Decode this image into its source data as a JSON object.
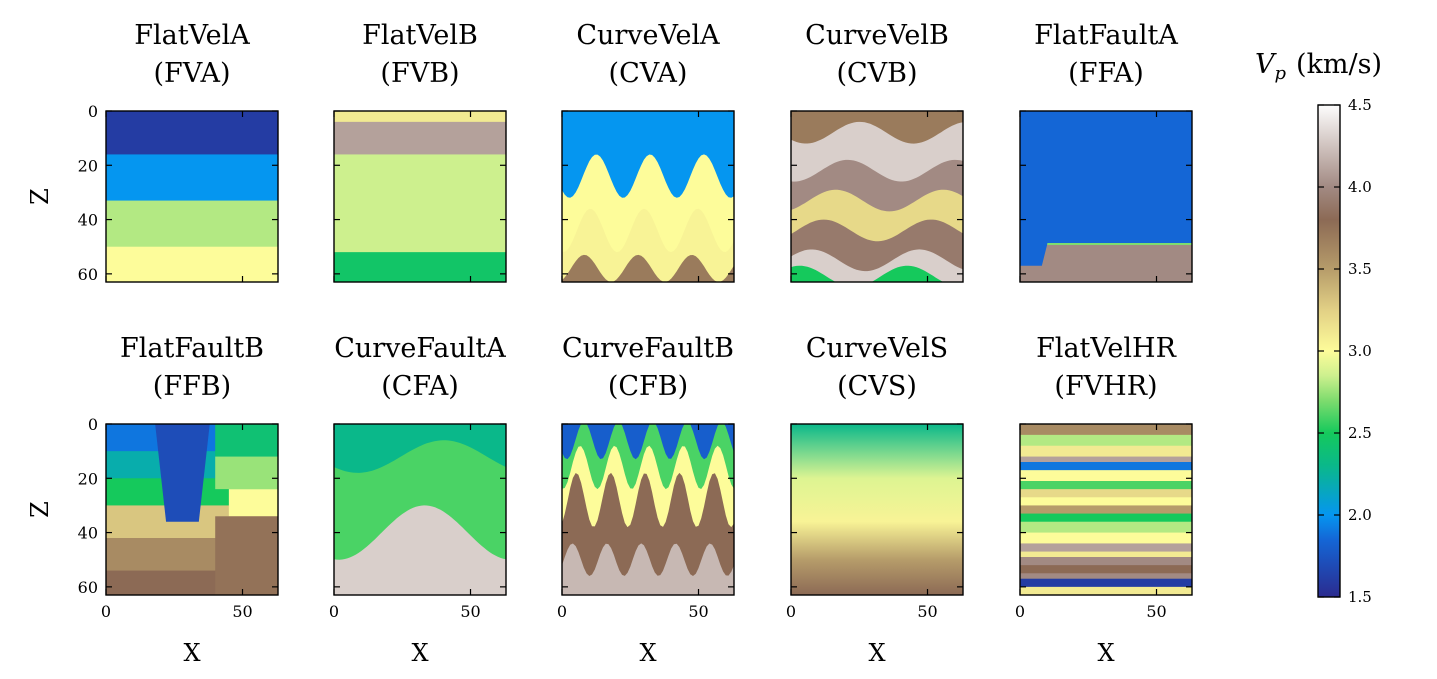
{
  "chart_data": {
    "type": "heatmap",
    "colorbar": {
      "label_symbol": "V",
      "label_subscript": "p",
      "label_unit": "(km/s)",
      "range": [
        1.5,
        4.5
      ],
      "ticks": [
        "1.5",
        "2.0",
        "2.5",
        "3.0",
        "3.5",
        "4.0",
        "4.5"
      ],
      "colormap_stops": [
        {
          "v": 1.5,
          "color": "#2b2b8f"
        },
        {
          "v": 1.85,
          "color": "#1466d6"
        },
        {
          "v": 2.0,
          "color": "#0596f0"
        },
        {
          "v": 2.3,
          "color": "#0ab88a"
        },
        {
          "v": 2.5,
          "color": "#15c95c"
        },
        {
          "v": 2.7,
          "color": "#7fdc6e"
        },
        {
          "v": 2.85,
          "color": "#cdf08e"
        },
        {
          "v": 3.0,
          "color": "#fdfc9a"
        },
        {
          "v": 3.25,
          "color": "#e2d085"
        },
        {
          "v": 3.5,
          "color": "#b69c6a"
        },
        {
          "v": 3.8,
          "color": "#8c6a55"
        },
        {
          "v": 4.0,
          "color": "#a28a83"
        },
        {
          "v": 4.25,
          "color": "#d0c3bf"
        },
        {
          "v": 4.5,
          "color": "#fdfdfd"
        }
      ]
    },
    "shared_axes": {
      "xlabel": "X",
      "ylabel": "Z",
      "xlim": [
        0,
        63
      ],
      "ylim": [
        63,
        0
      ],
      "xticks": [
        "0",
        "50"
      ],
      "yticks": [
        "0",
        "20",
        "40",
        "60"
      ]
    },
    "panels": [
      {
        "id": "fva",
        "title_line1": "FlatVelA",
        "title_line2": "(FVA)",
        "kind": "flat",
        "layers": [
          {
            "top": 0,
            "vp": 1.6
          },
          {
            "top": 16,
            "vp": 2.0
          },
          {
            "top": 33,
            "vp": 2.8
          },
          {
            "top": 50,
            "vp": 3.0
          }
        ]
      },
      {
        "id": "fvb",
        "title_line1": "FlatVelB",
        "title_line2": "(FVB)",
        "kind": "flat",
        "layers": [
          {
            "top": 0,
            "vp": 3.1
          },
          {
            "top": 4,
            "vp": 4.1
          },
          {
            "top": 16,
            "vp": 2.85
          },
          {
            "top": 52,
            "vp": 2.45
          }
        ]
      },
      {
        "id": "cva",
        "title_line1": "CurveVelA",
        "title_line2": "(CVA)",
        "kind": "curve",
        "layers": [
          {
            "top": 0,
            "vp": 2.0
          },
          {
            "top": 24,
            "vp": 3.0,
            "amp": 8,
            "freq": 3.2
          },
          {
            "top": 44,
            "vp": 3.05,
            "amp": 8,
            "freq": 3.2
          },
          {
            "top": 58,
            "vp": 3.7,
            "amp": 5,
            "freq": 3.2
          }
        ]
      },
      {
        "id": "cvb",
        "title_line1": "CurveVelB",
        "title_line2": "(CVB)",
        "kind": "curve",
        "layers": [
          {
            "top": 0,
            "vp": 3.7
          },
          {
            "top": 8,
            "vp": 4.3,
            "amp": 4,
            "freq": 1.6
          },
          {
            "top": 22,
            "vp": 4.0,
            "amp": 4,
            "freq": 1.6
          },
          {
            "top": 33,
            "vp": 3.2,
            "amp": 4,
            "freq": 1.6
          },
          {
            "top": 44,
            "vp": 3.9,
            "amp": 4,
            "freq": 1.6
          },
          {
            "top": 55,
            "vp": 4.3,
            "amp": 4,
            "freq": 1.6
          },
          {
            "top": 61,
            "vp": 2.5,
            "amp": 4,
            "freq": 1.6
          }
        ]
      },
      {
        "id": "ffa",
        "title_line1": "FlatFaultA",
        "title_line2": "(FFA)",
        "kind": "fault",
        "layers": [
          {
            "top": 0,
            "vp": 1.85
          },
          {
            "top": 49,
            "vp": 4.0
          }
        ]
      },
      {
        "id": "ffb",
        "title_line1": "FlatFaultB",
        "title_line2": "(FFB)",
        "kind": "blocks",
        "layers": [
          {
            "top": 0,
            "vp": 1.9
          },
          {
            "top": 10,
            "vp": 2.2
          },
          {
            "top": 20,
            "vp": 2.5
          },
          {
            "top": 30,
            "vp": 3.3
          },
          {
            "top": 42,
            "vp": 3.6
          },
          {
            "top": 54,
            "vp": 3.8
          }
        ]
      },
      {
        "id": "cfa",
        "title_line1": "CurveFaultA",
        "title_line2": "(CFA)",
        "kind": "curvefault",
        "layers": [
          {
            "top": 0,
            "vp": 2.3
          },
          {
            "top": 12,
            "vp": 2.6,
            "amp": 6,
            "freq": 1
          },
          {
            "top": 40,
            "vp": 4.3,
            "amp": 10,
            "freq": 1
          }
        ]
      },
      {
        "id": "cfb",
        "title_line1": "CurveFaultB",
        "title_line2": "(CFB)",
        "kind": "curve",
        "layers": [
          {
            "top": 0,
            "vp": 1.8
          },
          {
            "top": 6,
            "vp": 2.6,
            "amp": 7,
            "freq": 5
          },
          {
            "top": 16,
            "vp": 3.0,
            "amp": 8,
            "freq": 5
          },
          {
            "top": 28,
            "vp": 3.8,
            "amp": 10,
            "freq": 5
          },
          {
            "top": 50,
            "vp": 4.2,
            "amp": 6,
            "freq": 5
          }
        ]
      },
      {
        "id": "cvs",
        "title_line1": "CurveVelS",
        "title_line2": "(CVS)",
        "kind": "smooth",
        "layers": [
          {
            "top": 0,
            "vp": 2.3
          },
          {
            "top": 20,
            "vp": 2.9
          },
          {
            "top": 36,
            "vp": 3.05
          },
          {
            "top": 50,
            "vp": 3.5
          },
          {
            "top": 63,
            "vp": 3.8
          }
        ]
      },
      {
        "id": "fvhr",
        "title_line1": "FlatVelHR",
        "title_line2": "(FVHR)",
        "kind": "flat",
        "layers": [
          {
            "top": 0,
            "vp": 3.6
          },
          {
            "top": 4,
            "vp": 2.8
          },
          {
            "top": 8,
            "vp": 3.1
          },
          {
            "top": 12,
            "vp": 4.1
          },
          {
            "top": 14,
            "vp": 1.9
          },
          {
            "top": 17,
            "vp": 3.0
          },
          {
            "top": 21,
            "vp": 2.6
          },
          {
            "top": 24,
            "vp": 3.2
          },
          {
            "top": 27,
            "vp": 3.0
          },
          {
            "top": 30,
            "vp": 3.5
          },
          {
            "top": 33,
            "vp": 2.5
          },
          {
            "top": 36,
            "vp": 2.8
          },
          {
            "top": 40,
            "vp": 3.0
          },
          {
            "top": 44,
            "vp": 4.1
          },
          {
            "top": 47,
            "vp": 3.1
          },
          {
            "top": 49,
            "vp": 4.0
          },
          {
            "top": 52,
            "vp": 3.8
          },
          {
            "top": 55,
            "vp": 4.0
          },
          {
            "top": 57,
            "vp": 1.6
          },
          {
            "top": 60,
            "vp": 3.1
          }
        ]
      }
    ]
  }
}
